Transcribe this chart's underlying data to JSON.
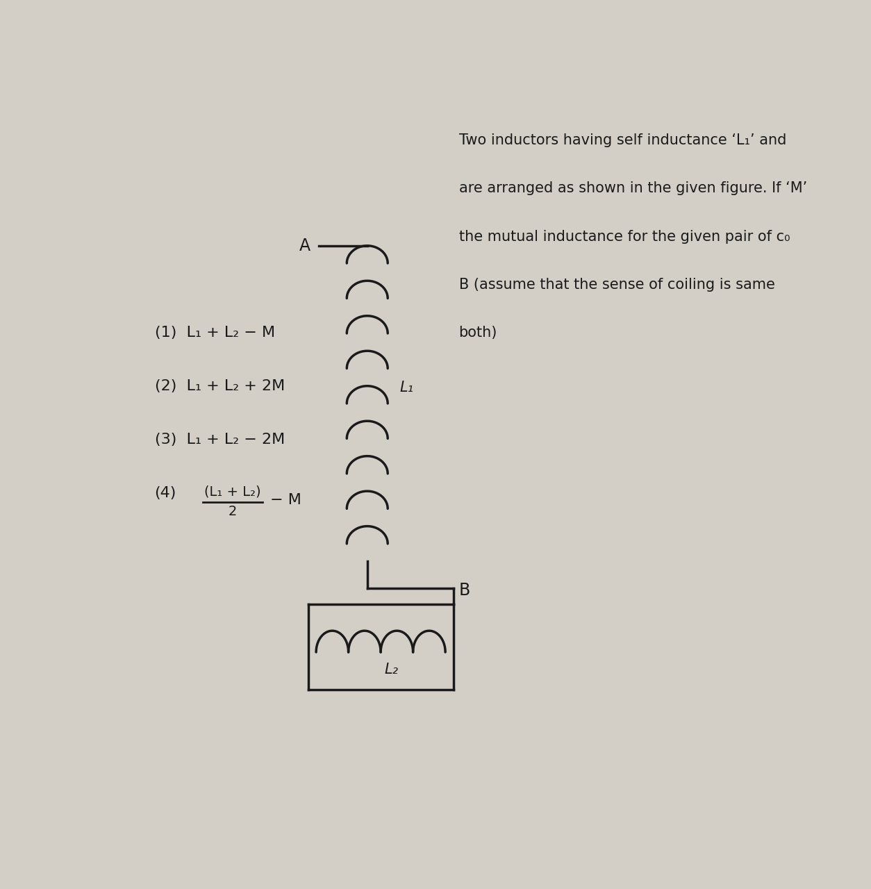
{
  "background_color": "#d4cfc6",
  "text_color": "#1a1a1a",
  "line_color": "#1a1a1a",
  "question_lines": [
    "Two inductors having self inductance ‘L₁’ and",
    "are arranged as shown in the given figure. If ‘M’",
    "the mutual inductance for the given pair of c₀",
    "B (assume that the sense of coiling is same",
    "both)"
  ],
  "opt1": "(1)  L₁ + L₂ − M",
  "opt2": "(2)  L₁ + L₂ + 2M",
  "opt3": "(3)  L₁ + L₂ − 2M",
  "opt4_pre": "(4)",
  "opt4_num": "(L₁ + L₂)",
  "opt4_den": "2",
  "opt4_suf": "− M",
  "label_A": "A",
  "label_B": "B",
  "label_L1": "L₁",
  "label_L2": "L₂",
  "figsize": [
    12.54,
    12.8
  ],
  "dpi": 100
}
